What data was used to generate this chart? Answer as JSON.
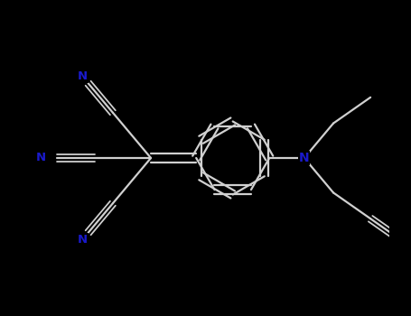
{
  "background": "#000000",
  "bond_color": "#d0d0d0",
  "label_color": "#1a1acc",
  "lw": 1.6,
  "figsize": [
    4.55,
    3.5
  ],
  "dpi": 100,
  "xlim": [
    -1,
    10
  ],
  "ylim": [
    -1,
    8
  ]
}
